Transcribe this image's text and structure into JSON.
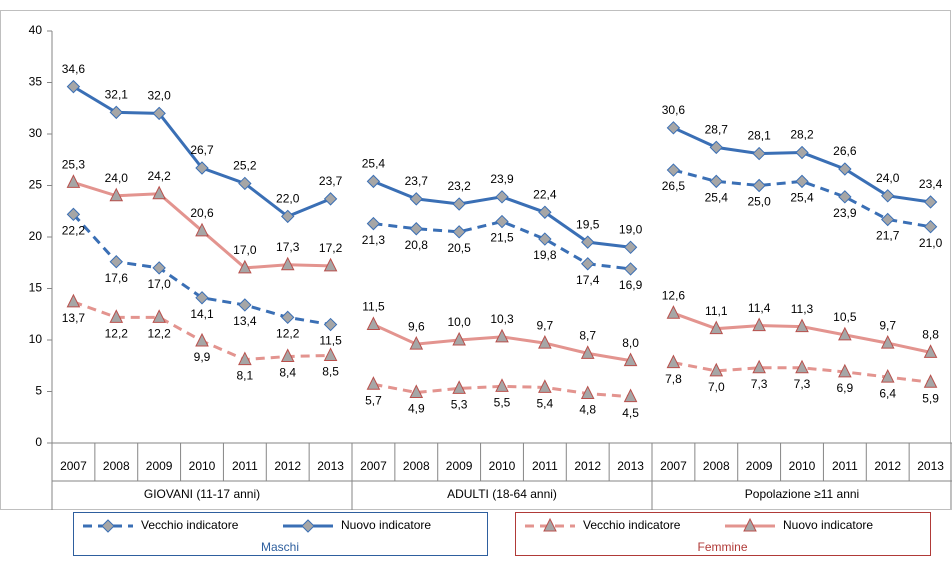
{
  "chart_data": {
    "type": "line",
    "categories": [
      "2007",
      "2008",
      "2009",
      "2010",
      "2011",
      "2012",
      "2013",
      "2007",
      "2008",
      "2009",
      "2010",
      "2011",
      "2012",
      "2013",
      "2007",
      "2008",
      "2009",
      "2010",
      "2011",
      "2012",
      "2013"
    ],
    "groups": [
      "GIOVANI (11-17 anni)",
      "ADULTI (18-64 anni)",
      "Popolazione ≥11 anni"
    ],
    "ylim": [
      0,
      40
    ],
    "yticks": [
      0,
      5,
      10,
      15,
      20,
      25,
      30,
      35,
      40
    ],
    "legend_groups": [
      {
        "label": "Maschi",
        "color": "#2e5f9e"
      },
      {
        "label": "Femmine",
        "color": "#b03a38"
      }
    ],
    "series": [
      {
        "name": "Vecchio indicatore",
        "color": "#3a6fb5",
        "marker": "diamond",
        "marker_stroke": "#3a6fb5",
        "line_style": "dashed",
        "label_position": "below",
        "values": [
          22.2,
          17.6,
          17.0,
          14.1,
          13.4,
          12.2,
          11.5,
          21.3,
          20.8,
          20.5,
          21.5,
          19.8,
          17.4,
          16.9,
          26.5,
          25.4,
          25.0,
          25.4,
          23.9,
          21.7,
          21.0
        ],
        "value_labels": [
          "22,2",
          "17,6",
          "17,0",
          "14,1",
          "13,4",
          "12,2",
          "11,5",
          "21,3",
          "20,8",
          "20,5",
          "21,5",
          "19,8",
          "17,4",
          "16,9",
          "26,5",
          "25,4",
          "25,0",
          "25,4",
          "23,9",
          "21,7",
          "21,0"
        ]
      },
      {
        "name": "Nuovo indicatore",
        "color": "#3a6fb5",
        "marker": "diamond",
        "marker_stroke": "#3a6fb5",
        "line_style": "solid",
        "label_position": "above",
        "values": [
          34.6,
          32.1,
          32.0,
          26.7,
          25.2,
          22.0,
          23.7,
          25.4,
          23.7,
          23.2,
          23.9,
          22.4,
          19.5,
          19.0,
          30.6,
          28.7,
          28.1,
          28.2,
          26.6,
          24.0,
          23.4
        ],
        "value_labels": [
          "34,6",
          "32,1",
          "32,0",
          "26,7",
          "25,2",
          "22,0",
          "23,7",
          "25,4",
          "23,7",
          "23,2",
          "23,9",
          "22,4",
          "19,5",
          "19,0",
          "30,6",
          "28,7",
          "28,1",
          "28,2",
          "26,6",
          "24,0",
          "23,4"
        ]
      },
      {
        "name": "Vecchio indicatore",
        "color": "#e3948f",
        "marker": "triangle",
        "marker_stroke": "#b9504c",
        "line_style": "dashed",
        "label_position": "below",
        "values": [
          13.7,
          12.2,
          12.2,
          9.9,
          8.1,
          8.4,
          8.5,
          5.7,
          4.9,
          5.3,
          5.5,
          5.4,
          4.8,
          4.5,
          7.8,
          7.0,
          7.3,
          7.3,
          6.9,
          6.4,
          5.9
        ],
        "value_labels": [
          "13,7",
          "12,2",
          "12,2",
          "9,9",
          "8,1",
          "8,4",
          "8,5",
          "5,7",
          "4,9",
          "5,3",
          "5,5",
          "5,4",
          "4,8",
          "4,5",
          "7,8",
          "7,0",
          "7,3",
          "7,3",
          "6,9",
          "6,4",
          "5,9"
        ]
      },
      {
        "name": "Nuovo indicatore",
        "color": "#e3948f",
        "marker": "triangle",
        "marker_stroke": "#b9504c",
        "line_style": "solid",
        "label_position": "above",
        "values": [
          25.3,
          24.0,
          24.2,
          20.6,
          17.0,
          17.3,
          17.2,
          11.5,
          9.6,
          10.0,
          10.3,
          9.7,
          8.7,
          8.0,
          12.6,
          11.1,
          11.4,
          11.3,
          10.5,
          9.7,
          8.8
        ],
        "value_labels": [
          "25,3",
          "24,0",
          "24,2",
          "20,6",
          "17,0",
          "17,3",
          "17,2",
          "11,5",
          "9,6",
          "10,0",
          "10,3",
          "9,7",
          "8,7",
          "8,0",
          "12,6",
          "11,1",
          "11,4",
          "11,3",
          "10,5",
          "9,7",
          "8,8"
        ]
      }
    ]
  }
}
